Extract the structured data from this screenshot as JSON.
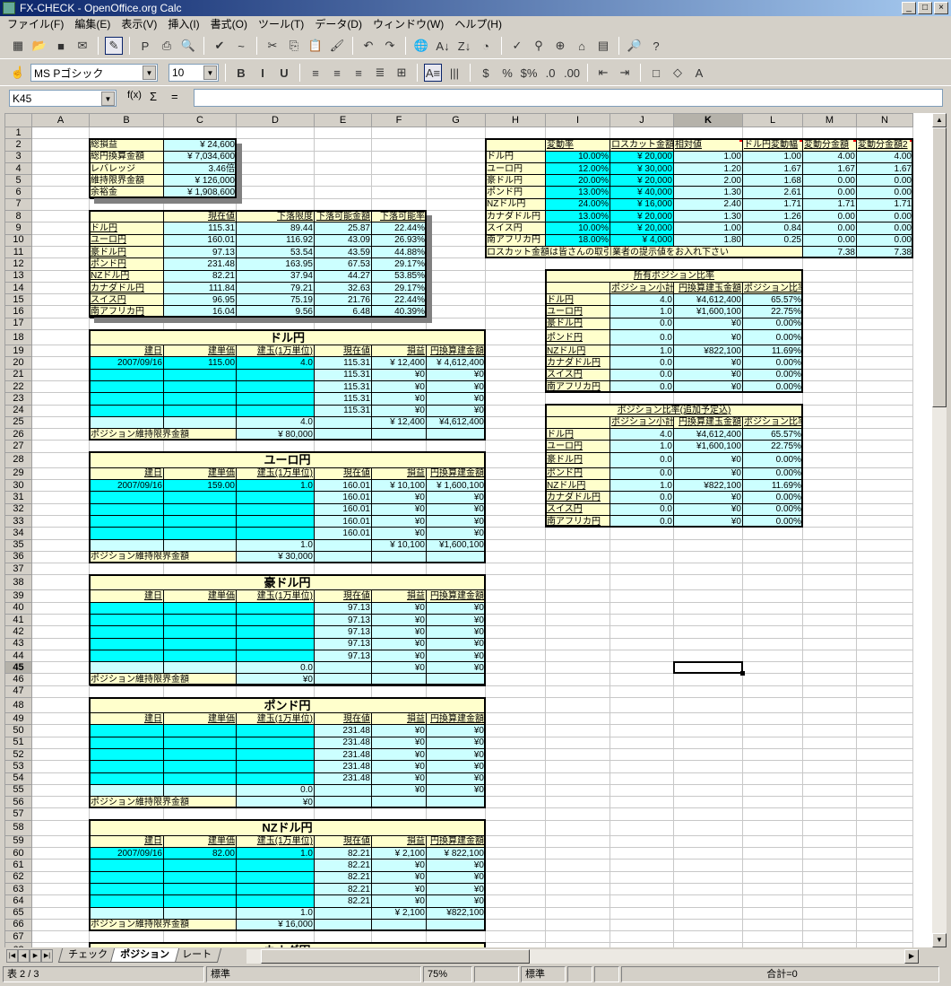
{
  "window": {
    "title": "FX-CHECK - OpenOffice.org Calc",
    "controls": [
      "_",
      "□",
      "×"
    ]
  },
  "menu": [
    "ファイル(F)",
    "編集(E)",
    "表示(V)",
    "挿入(I)",
    "書式(O)",
    "ツール(T)",
    "データ(D)",
    "ウィンドウ(W)",
    "ヘルプ(H)"
  ],
  "toolbar1": [
    {
      "name": "new-icon",
      "glyph": "▦"
    },
    {
      "name": "open-icon",
      "glyph": "📂"
    },
    {
      "name": "save-icon",
      "glyph": "■"
    },
    {
      "name": "email-icon",
      "glyph": "✉"
    },
    {
      "name": "edit-mode-icon",
      "glyph": "✎",
      "active": true
    },
    {
      "name": "export-pdf-icon",
      "glyph": "P"
    },
    {
      "name": "print-icon",
      "glyph": "⎙"
    },
    {
      "name": "page-preview-icon",
      "glyph": "🔍"
    },
    {
      "name": "spellcheck-icon",
      "glyph": "✔"
    },
    {
      "name": "autospellcheck-icon",
      "glyph": "~"
    },
    {
      "name": "cut-icon",
      "glyph": "✂"
    },
    {
      "name": "copy-icon",
      "glyph": "⎘"
    },
    {
      "name": "paste-icon",
      "glyph": "📋"
    },
    {
      "name": "format-paintbrush-icon",
      "glyph": "🖌"
    },
    {
      "name": "undo-icon",
      "glyph": "↶"
    },
    {
      "name": "redo-icon",
      "glyph": "↷"
    },
    {
      "name": "hyperlink-icon",
      "glyph": "🌐"
    },
    {
      "name": "sort-ascending-icon",
      "glyph": "A↓"
    },
    {
      "name": "sort-descending-icon",
      "glyph": "Z↓"
    },
    {
      "name": "chart-icon",
      "glyph": "◔"
    },
    {
      "name": "draw-functions-icon",
      "glyph": "✓"
    },
    {
      "name": "find-replace-icon",
      "glyph": "⚲"
    },
    {
      "name": "navigator-icon",
      "glyph": "⊕"
    },
    {
      "name": "gallery-icon",
      "glyph": "⌂"
    },
    {
      "name": "data-sources-icon",
      "glyph": "▤"
    },
    {
      "name": "zoom-icon",
      "glyph": "🔎"
    },
    {
      "name": "help-icon",
      "glyph": "?"
    }
  ],
  "toolbar2": {
    "font_name": "MS Pゴシック",
    "font_size": "10",
    "icons": [
      {
        "name": "bold-icon",
        "glyph": "B"
      },
      {
        "name": "italic-icon",
        "glyph": "I"
      },
      {
        "name": "underline-icon",
        "glyph": "U"
      },
      {
        "name": "align-left-icon",
        "glyph": "≡"
      },
      {
        "name": "align-center-icon",
        "glyph": "≡"
      },
      {
        "name": "align-right-icon",
        "glyph": "≡"
      },
      {
        "name": "justify-icon",
        "glyph": "≣"
      },
      {
        "name": "merge-cells-icon",
        "glyph": "⊞"
      },
      {
        "name": "text-direction-lr-icon",
        "glyph": "A≡",
        "active": true
      },
      {
        "name": "text-direction-tb-icon",
        "glyph": "|||"
      },
      {
        "name": "currency-format-icon",
        "glyph": "$"
      },
      {
        "name": "percent-format-icon",
        "glyph": "%"
      },
      {
        "name": "standard-format-icon",
        "glyph": "$%"
      },
      {
        "name": "add-decimal-icon",
        "glyph": ".0"
      },
      {
        "name": "delete-decimal-icon",
        "glyph": ".00"
      },
      {
        "name": "decrease-indent-icon",
        "glyph": "⇤"
      },
      {
        "name": "increase-indent-icon",
        "glyph": "⇥"
      },
      {
        "name": "borders-icon",
        "glyph": "□"
      },
      {
        "name": "background-color-icon",
        "glyph": "◇"
      },
      {
        "name": "font-color-icon",
        "glyph": "A"
      }
    ]
  },
  "formula": {
    "cell_ref": "K45",
    "function_wizard": "f(x)",
    "sum": "Σ",
    "equals": "=",
    "content": ""
  },
  "columns": [
    "A",
    "B",
    "C",
    "D",
    "E",
    "F",
    "G",
    "H",
    "I",
    "J",
    "K",
    "L",
    "M",
    "N"
  ],
  "selected": {
    "column": "K",
    "row": 45
  },
  "summary": [
    {
      "label": "総損益",
      "value": "¥ 24,600"
    },
    {
      "label": "総円換算金額",
      "value": "¥ 7,034,600"
    },
    {
      "label": "レバレッジ",
      "value": "3.46倍"
    },
    {
      "label": "維持限界金額",
      "value": "¥ 126,000"
    },
    {
      "label": "余裕金",
      "value": "¥ 1,908,600"
    }
  ],
  "drop_table": {
    "headers": [
      "現在値",
      "下落限度",
      "下落可能金額",
      "下落可能率"
    ],
    "rows": [
      {
        "name": "ドル円",
        "values": [
          "115.31",
          "89.44",
          "25.87",
          "22.44%"
        ]
      },
      {
        "name": "ユーロ円",
        "values": [
          "160.01",
          "116.92",
          "43.09",
          "26.93%"
        ]
      },
      {
        "name": "豪ドル円",
        "values": [
          "97.13",
          "53.54",
          "43.59",
          "44.88%"
        ]
      },
      {
        "name": "ポンド円",
        "values": [
          "231.48",
          "163.95",
          "67.53",
          "29.17%"
        ]
      },
      {
        "name": "NZドル円",
        "values": [
          "82.21",
          "37.94",
          "44.27",
          "53.85%"
        ]
      },
      {
        "name": "カナダドル円",
        "values": [
          "111.84",
          "79.21",
          "32.63",
          "29.17%"
        ]
      },
      {
        "name": "スイス円",
        "values": [
          "96.95",
          "75.19",
          "21.76",
          "22.44%"
        ]
      },
      {
        "name": "南アフリカ円",
        "values": [
          "16.04",
          "9.56",
          "6.48",
          "40.39%"
        ]
      }
    ]
  },
  "volatility_table": {
    "headers": [
      "変動率",
      "ロスカット金額",
      "相対値",
      "ドル円変動幅",
      "変動分金額",
      "変動分金額2"
    ],
    "rows": [
      {
        "name": "ドル円",
        "values": [
          "10.00%",
          "¥ 20,000",
          "1.00",
          "1.00",
          "4.00",
          "4.00"
        ]
      },
      {
        "name": "ユーロ円",
        "values": [
          "12.00%",
          "¥ 30,000",
          "1.20",
          "1.67",
          "1.67",
          "1.67"
        ]
      },
      {
        "name": "豪ドル円",
        "values": [
          "20.00%",
          "¥ 20,000",
          "2.00",
          "1.68",
          "0.00",
          "0.00"
        ]
      },
      {
        "name": "ポンド円",
        "values": [
          "13.00%",
          "¥ 40,000",
          "1.30",
          "2.61",
          "0.00",
          "0.00"
        ]
      },
      {
        "name": "NZドル円",
        "values": [
          "24.00%",
          "¥ 16,000",
          "2.40",
          "1.71",
          "1.71",
          "1.71"
        ]
      },
      {
        "name": "カナダドル円",
        "values": [
          "13.00%",
          "¥ 20,000",
          "1.30",
          "1.26",
          "0.00",
          "0.00"
        ]
      },
      {
        "name": "スイス円",
        "values": [
          "10.00%",
          "¥ 20,000",
          "1.00",
          "0.84",
          "0.00",
          "0.00"
        ]
      },
      {
        "name": "南アフリカ円",
        "values": [
          "18.00%",
          "¥ 4,000",
          "1.80",
          "0.25",
          "0.00",
          "0.00"
        ]
      }
    ],
    "note": "ロスカット金額は皆さんの取引業者の提示値をお入れ下さい",
    "totals": [
      "7.38",
      "7.38"
    ]
  },
  "ratio_tables": [
    {
      "title": "所有ポジション比率",
      "headers": [
        "ポジション小計",
        "円換算建玉金額",
        "ポジション比率"
      ],
      "rows": [
        {
          "name": "ドル円",
          "values": [
            "4.0",
            "¥4,612,400",
            "65.57%"
          ]
        },
        {
          "name": "ユーロ円",
          "values": [
            "1.0",
            "¥1,600,100",
            "22.75%"
          ]
        },
        {
          "name": "豪ドル円",
          "values": [
            "0.0",
            "¥0",
            "0.00%"
          ]
        },
        {
          "name": "ポンド円",
          "values": [
            "0.0",
            "¥0",
            "0.00%"
          ]
        },
        {
          "name": "NZドル円",
          "values": [
            "1.0",
            "¥822,100",
            "11.69%"
          ]
        },
        {
          "name": "カナダドル円",
          "values": [
            "0.0",
            "¥0",
            "0.00%"
          ]
        },
        {
          "name": "スイス円",
          "values": [
            "0.0",
            "¥0",
            "0.00%"
          ]
        },
        {
          "name": "南アフリカ円",
          "values": [
            "0.0",
            "¥0",
            "0.00%"
          ]
        }
      ]
    },
    {
      "title": "ポジション比率(追加予定込)",
      "headers": [
        "ポジション小計",
        "円換算建玉金額",
        "ポジション比率"
      ],
      "rows": [
        {
          "name": "ドル円",
          "values": [
            "4.0",
            "¥4,612,400",
            "65.57%"
          ]
        },
        {
          "name": "ユーロ円",
          "values": [
            "1.0",
            "¥1,600,100",
            "22.75%"
          ]
        },
        {
          "name": "豪ドル円",
          "values": [
            "0.0",
            "¥0",
            "0.00%"
          ]
        },
        {
          "name": "ポンド円",
          "values": [
            "0.0",
            "¥0",
            "0.00%"
          ]
        },
        {
          "name": "NZドル円",
          "values": [
            "1.0",
            "¥822,100",
            "11.69%"
          ]
        },
        {
          "name": "カナダドル円",
          "values": [
            "0.0",
            "¥0",
            "0.00%"
          ]
        },
        {
          "name": "スイス円",
          "values": [
            "0.0",
            "¥0",
            "0.00%"
          ]
        },
        {
          "name": "南アフリカ円",
          "values": [
            "0.0",
            "¥0",
            "0.00%"
          ]
        }
      ]
    }
  ],
  "block_headers": [
    "建日",
    "建単価",
    "建玉(1万単位)",
    "現在値",
    "損益",
    "円換算建金額"
  ],
  "maint_label": "ポジション維持限界金額",
  "currency_blocks": [
    {
      "title": "ドル円",
      "entries": [
        [
          "2007/09/16",
          "115.00",
          "4.0",
          "115.31",
          "¥ 12,400",
          "¥ 4,612,400"
        ],
        [
          "",
          "",
          "",
          "115.31",
          "¥0",
          "¥0"
        ],
        [
          "",
          "",
          "",
          "115.31",
          "¥0",
          "¥0"
        ],
        [
          "",
          "",
          "",
          "115.31",
          "¥0",
          "¥0"
        ],
        [
          "",
          "",
          "",
          "115.31",
          "¥0",
          "¥0"
        ]
      ],
      "total": [
        "4.0",
        "¥ 12,400",
        "¥4,612,400"
      ],
      "maint": "¥ 80,000"
    },
    {
      "title": "ユーロ円",
      "entries": [
        [
          "2007/09/16",
          "159.00",
          "1.0",
          "160.01",
          "¥ 10,100",
          "¥ 1,600,100"
        ],
        [
          "",
          "",
          "",
          "160.01",
          "¥0",
          "¥0"
        ],
        [
          "",
          "",
          "",
          "160.01",
          "¥0",
          "¥0"
        ],
        [
          "",
          "",
          "",
          "160.01",
          "¥0",
          "¥0"
        ],
        [
          "",
          "",
          "",
          "160.01",
          "¥0",
          "¥0"
        ]
      ],
      "total": [
        "1.0",
        "¥ 10,100",
        "¥1,600,100"
      ],
      "maint": "¥ 30,000"
    },
    {
      "title": "豪ドル円",
      "entries": [
        [
          "",
          "",
          "",
          "97.13",
          "¥0",
          "¥0"
        ],
        [
          "",
          "",
          "",
          "97.13",
          "¥0",
          "¥0"
        ],
        [
          "",
          "",
          "",
          "97.13",
          "¥0",
          "¥0"
        ],
        [
          "",
          "",
          "",
          "97.13",
          "¥0",
          "¥0"
        ],
        [
          "",
          "",
          "",
          "97.13",
          "¥0",
          "¥0"
        ]
      ],
      "total": [
        "0.0",
        "¥0",
        "¥0"
      ],
      "maint": "¥0"
    },
    {
      "title": "ポンド円",
      "entries": [
        [
          "",
          "",
          "",
          "231.48",
          "¥0",
          "¥0"
        ],
        [
          "",
          "",
          "",
          "231.48",
          "¥0",
          "¥0"
        ],
        [
          "",
          "",
          "",
          "231.48",
          "¥0",
          "¥0"
        ],
        [
          "",
          "",
          "",
          "231.48",
          "¥0",
          "¥0"
        ],
        [
          "",
          "",
          "",
          "231.48",
          "¥0",
          "¥0"
        ]
      ],
      "total": [
        "0.0",
        "¥0",
        "¥0"
      ],
      "maint": "¥0"
    },
    {
      "title": "NZドル円",
      "entries": [
        [
          "2007/09/16",
          "82.00",
          "1.0",
          "82.21",
          "¥ 2,100",
          "¥ 822,100"
        ],
        [
          "",
          "",
          "",
          "82.21",
          "¥0",
          "¥0"
        ],
        [
          "",
          "",
          "",
          "82.21",
          "¥0",
          "¥0"
        ],
        [
          "",
          "",
          "",
          "82.21",
          "¥0",
          "¥0"
        ],
        [
          "",
          "",
          "",
          "82.21",
          "¥0",
          "¥0"
        ]
      ],
      "total": [
        "1.0",
        "¥ 2,100",
        "¥822,100"
      ],
      "maint": "¥ 16,000"
    },
    {
      "title": "カナダ円"
    }
  ],
  "sheet_tabs": [
    {
      "label": "チェック"
    },
    {
      "label": "ポジション",
      "active": true
    },
    {
      "label": "レート"
    }
  ],
  "status": {
    "sheet": "表 2 / 3",
    "page_style": "標準",
    "zoom": "75%",
    "mode": "標準",
    "sum": "合計=0"
  },
  "colors": {
    "label_bg": "#ffffcc",
    "value_bg": "#ccffff",
    "input_bg": "#00ffff"
  }
}
